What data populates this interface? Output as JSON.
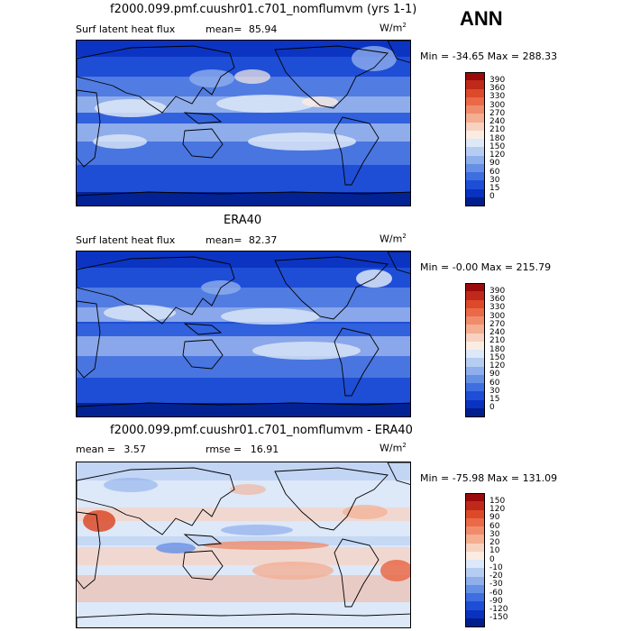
{
  "header": {
    "season": "ANN"
  },
  "panels": [
    {
      "id": "model",
      "title": "f2000.099.pmf.cuushr01.c701_nomflumvm (yrs 1-1)",
      "variable": "Surf latent heat flux",
      "stat_label": "mean=",
      "stat_value": "85.94",
      "units": "W/m",
      "units_exp": "2",
      "minmax": "Min = -34.65 Max = 288.33",
      "scale": "abs",
      "colorbar": {
        "labels": [
          "390",
          "360",
          "330",
          "300",
          "270",
          "240",
          "210",
          "180",
          "150",
          "120",
          "90",
          "60",
          "30",
          "15",
          "0"
        ],
        "colors": [
          "#9a0a0a",
          "#c0281a",
          "#dc4a2a",
          "#ea6a48",
          "#f08c6c",
          "#f4ae92",
          "#f8d2c0",
          "#fbece2",
          "#dde8f8",
          "#b6cdf2",
          "#8eaeec",
          "#6690e6",
          "#3e6ee0",
          "#1e4ed6",
          "#0a32c0",
          "#001e8c"
        ]
      }
    },
    {
      "id": "obs",
      "title": "ERA40",
      "variable": "Surf latent heat flux",
      "stat_label": "mean=",
      "stat_value": "82.37",
      "units": "W/m",
      "units_exp": "2",
      "minmax": "Min = -0.00 Max = 215.79",
      "scale": "abs",
      "colorbar": {
        "labels": [
          "390",
          "360",
          "330",
          "300",
          "270",
          "240",
          "210",
          "180",
          "150",
          "120",
          "90",
          "60",
          "30",
          "15",
          "0"
        ],
        "colors": [
          "#9a0a0a",
          "#c0281a",
          "#dc4a2a",
          "#ea6a48",
          "#f08c6c",
          "#f4ae92",
          "#f8d2c0",
          "#fbece2",
          "#dde8f8",
          "#b6cdf2",
          "#8eaeec",
          "#6690e6",
          "#3e6ee0",
          "#1e4ed6",
          "#0a32c0",
          "#001e8c"
        ]
      }
    },
    {
      "id": "diff",
      "title": "f2000.099.pmf.cuushr01.c701_nomflumvm - ERA40",
      "mean_label": "mean =",
      "mean_value": "3.57",
      "rmse_label": "rmse =",
      "rmse_value": "16.91",
      "units": "W/m",
      "units_exp": "2",
      "minmax": "Min = -75.98 Max = 131.09",
      "scale": "diff",
      "colorbar": {
        "labels": [
          "150",
          "120",
          "90",
          "60",
          "30",
          "20",
          "10",
          "0",
          "-10",
          "-20",
          "-30",
          "-60",
          "-90",
          "-120",
          "-150"
        ],
        "colors": [
          "#9a0a0a",
          "#c0281a",
          "#dc4a2a",
          "#ea6a48",
          "#f08c6c",
          "#f4ae92",
          "#f8d2c0",
          "#fbece2",
          "#dde8f8",
          "#b6cdf2",
          "#8eaeec",
          "#6690e6",
          "#3e6ee0",
          "#1e4ed6",
          "#0a32c0",
          "#001e8c"
        ]
      }
    }
  ]
}
